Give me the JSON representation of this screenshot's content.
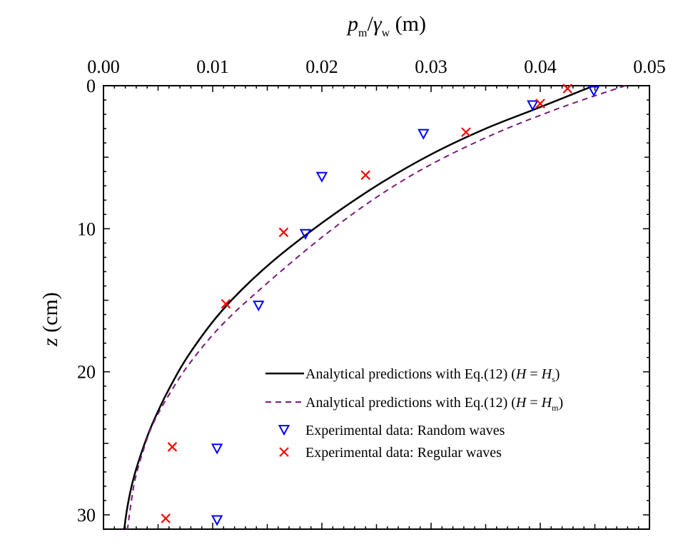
{
  "chart_data": {
    "type": "scatter",
    "x_axis": {
      "label_main": "p",
      "label_main_sub": "m",
      "label_slash": "/",
      "label_gamma": "γ",
      "label_gamma_sub": "w",
      "label_unit": " (m)",
      "position": "top",
      "range": [
        0,
        0.05
      ],
      "ticks": [
        "0.00",
        "0.01",
        "0.02",
        "0.03",
        "0.04",
        "0.05"
      ],
      "tick_values": [
        0,
        0.01,
        0.02,
        0.03,
        0.04,
        0.05
      ]
    },
    "y_axis": {
      "label_italic": "z",
      "label_unit": " (cm)",
      "inverted": true,
      "range": [
        0,
        31
      ],
      "ticks": [
        "0",
        "10",
        "20",
        "30"
      ],
      "tick_values": [
        0,
        10,
        20,
        30
      ]
    },
    "grid": false,
    "legend_position": "bottom-right",
    "series": [
      {
        "name": "Analytical predictions with Eq.(12) (H = Hs)",
        "legend_text": "Analytical predictions with Eq.(12) (",
        "legend_var": "H",
        "legend_eq": " = ",
        "legend_val": "H",
        "legend_sub": "s",
        "legend_close": ")",
        "style": "solid",
        "color": "#000000",
        "x": [
          0.0449,
          0.04,
          0.035,
          0.03,
          0.025,
          0.02,
          0.015,
          0.011,
          0.008,
          0.006,
          0.0045,
          0.0035,
          0.0027,
          0.0022,
          0.0019
        ],
        "y": [
          0,
          1.5,
          3.0,
          4.8,
          7.0,
          9.6,
          12.6,
          15.6,
          18.6,
          21.2,
          23.6,
          25.6,
          27.6,
          29.4,
          31.0
        ]
      },
      {
        "name": "Analytical predictions with Eq.(12) (H = Hm)",
        "legend_text": "Analytical predictions with Eq.(12) (",
        "legend_var": "H",
        "legend_eq": " = ",
        "legend_val": "H",
        "legend_sub": "m",
        "legend_close": ")",
        "style": "dashed",
        "color": "#7a1a7a",
        "x": [
          0.0478,
          0.042,
          0.036,
          0.03,
          0.025,
          0.02,
          0.015,
          0.011,
          0.008,
          0.006,
          0.0045,
          0.0036,
          0.0029,
          0.0025,
          0.0022
        ],
        "y": [
          0,
          1.5,
          3.3,
          5.5,
          7.8,
          10.6,
          13.8,
          16.6,
          19.3,
          21.6,
          23.7,
          25.6,
          27.5,
          29.3,
          31.0
        ]
      },
      {
        "name": "Experimental data: Random waves",
        "marker": "triangle-down",
        "color": "#0000ff",
        "x": [
          0.0449,
          0.0393,
          0.0293,
          0.02,
          0.0185,
          0.0142,
          0.0104,
          0.0104
        ],
        "y": [
          0.35,
          1.35,
          3.35,
          6.35,
          10.35,
          15.35,
          25.35,
          30.35
        ]
      },
      {
        "name": "Experimental data: Regular waves",
        "marker": "x",
        "color": "#ff0000",
        "x": [
          0.0425,
          0.04,
          0.0332,
          0.024,
          0.0165,
          0.0112,
          0.0063,
          0.0057
        ],
        "y": [
          0.2,
          1.25,
          3.25,
          6.25,
          10.25,
          15.25,
          25.25,
          30.25
        ]
      }
    ]
  }
}
